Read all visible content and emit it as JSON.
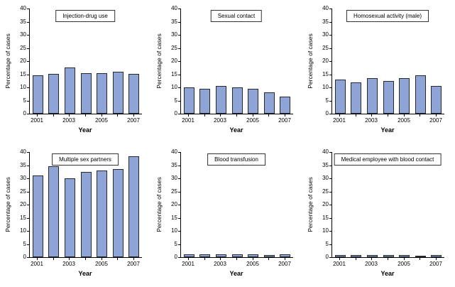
{
  "figure": {
    "bar_fill": "#8fa4d6",
    "bar_border": "#26292e",
    "axis_color": "#000000"
  },
  "chart_data": [
    {
      "type": "bar",
      "title": "Injection-drug use",
      "categories": [
        "2001",
        "2002",
        "2003",
        "2004",
        "2005",
        "2006",
        "2007"
      ],
      "values": [
        14.5,
        15,
        17.5,
        15.5,
        15.5,
        16,
        15
      ],
      "xlabel": "Year",
      "ylabel": "Percentage of cases",
      "ylim": [
        0,
        40
      ],
      "ytick_step": 5,
      "xtick_labels": [
        "2001",
        "2003",
        "2005",
        "2007"
      ]
    },
    {
      "type": "bar",
      "title": "Sexual contact",
      "categories": [
        "2001",
        "2002",
        "2003",
        "2004",
        "2005",
        "2006",
        "2007"
      ],
      "values": [
        10,
        9.5,
        10.5,
        10,
        9.5,
        8,
        6.5
      ],
      "xlabel": "Year",
      "ylabel": "Percentage of cases",
      "ylim": [
        0,
        40
      ],
      "ytick_step": 5,
      "xtick_labels": [
        "2001",
        "2003",
        "2005",
        "2007"
      ]
    },
    {
      "type": "bar",
      "title": "Homosexual activity (male)",
      "categories": [
        "2001",
        "2002",
        "2003",
        "2004",
        "2005",
        "2006",
        "2007"
      ],
      "values": [
        13,
        12,
        13.5,
        12.5,
        13.5,
        14.5,
        10.5
      ],
      "xlabel": "Year",
      "ylabel": "Percentage of cases",
      "ylim": [
        0,
        40
      ],
      "ytick_step": 5,
      "xtick_labels": [
        "2001",
        "2003",
        "2005",
        "2007"
      ]
    },
    {
      "type": "bar",
      "title": "Multiple sex partners",
      "categories": [
        "2001",
        "2002",
        "2003",
        "2004",
        "2005",
        "2006",
        "2007"
      ],
      "values": [
        31,
        34.5,
        30,
        32.5,
        33,
        33.5,
        38.5
      ],
      "xlabel": "Year",
      "ylabel": "Percentage of cases",
      "ylim": [
        0,
        40
      ],
      "ytick_step": 5,
      "xtick_labels": [
        "2001",
        "2003",
        "2005",
        "2007"
      ]
    },
    {
      "type": "bar",
      "title": "Blood transfusion",
      "categories": [
        "2001",
        "2002",
        "2003",
        "2004",
        "2005",
        "2006",
        "2007"
      ],
      "values": [
        1,
        1,
        1,
        1,
        1,
        0.7,
        1
      ],
      "xlabel": "Year",
      "ylabel": "Percentage of cases",
      "ylim": [
        0,
        40
      ],
      "ytick_step": 5,
      "xtick_labels": [
        "2001",
        "2003",
        "2005",
        "2007"
      ]
    },
    {
      "type": "bar",
      "title": "Medical employee with blood contact",
      "categories": [
        "2001",
        "2002",
        "2003",
        "2004",
        "2005",
        "2006",
        "2007"
      ],
      "values": [
        0.8,
        0.8,
        0.8,
        0.8,
        0.8,
        0.5,
        0.8
      ],
      "xlabel": "Year",
      "ylabel": "Percentage of cases",
      "ylim": [
        0,
        40
      ],
      "ytick_step": 5,
      "xtick_labels": [
        "2001",
        "2003",
        "2005",
        "2007"
      ]
    }
  ]
}
